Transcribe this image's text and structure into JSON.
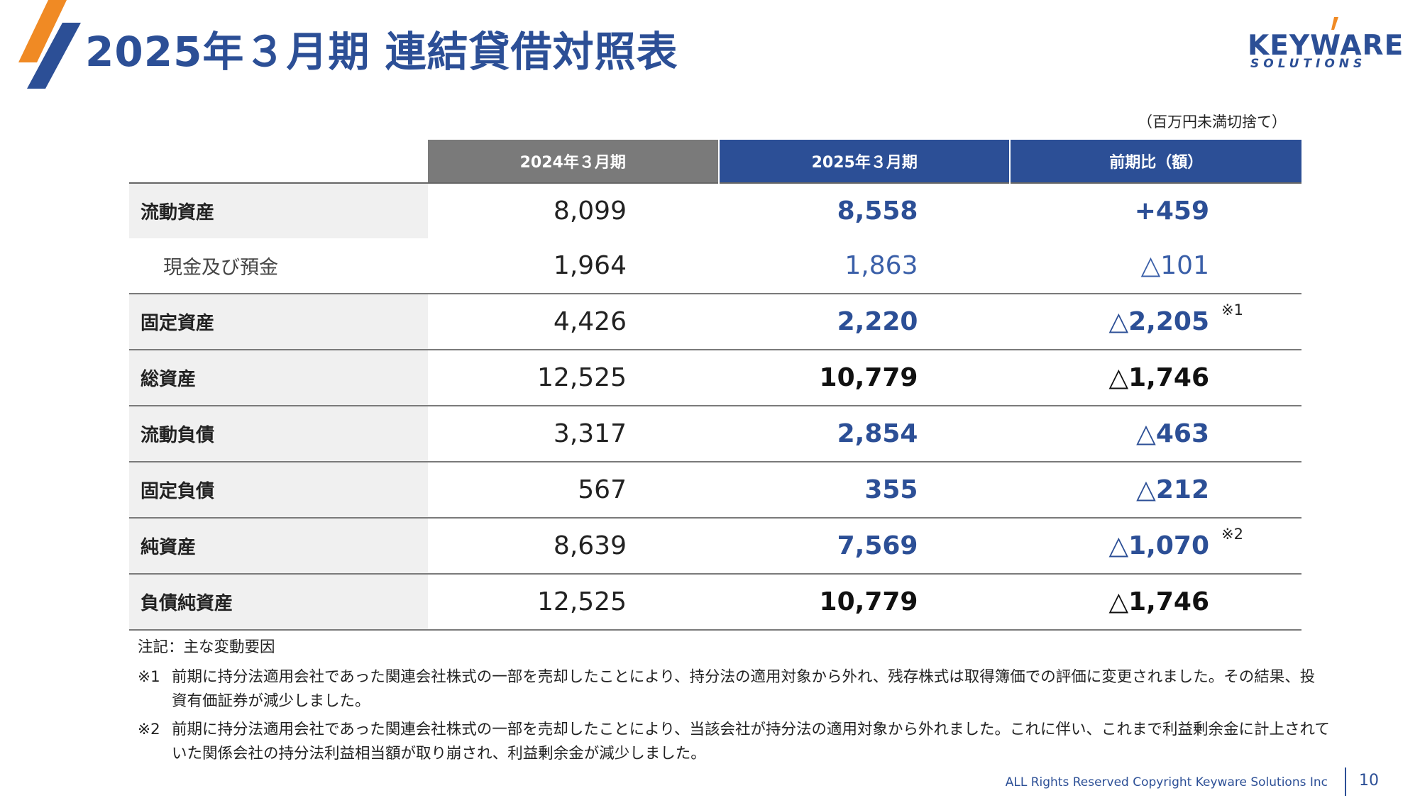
{
  "header": {
    "title": "2025年３月期 連結貸借対照表",
    "brand_colors": {
      "orange": "#f08a24",
      "blue": "#2c4f96"
    }
  },
  "logo": {
    "main": "KEYWARE",
    "sub": "SOLUTIONS"
  },
  "unit_note": "（百万円未満切捨て）",
  "table": {
    "columns": [
      "2024年３月期",
      "2025年３月期",
      "前期比（額）"
    ],
    "rows": [
      {
        "label": "流動資産",
        "prev": "8,099",
        "cur": "8,558",
        "diff": "+459",
        "note": ""
      },
      {
        "label": "現金及び預金",
        "prev": "1,964",
        "cur": "1,863",
        "diff": "△101",
        "note": ""
      },
      {
        "label": "固定資産",
        "prev": "4,426",
        "cur": "2,220",
        "diff": "△2,205",
        "note": "※1"
      },
      {
        "label": "総資産",
        "prev": "12,525",
        "cur": "10,779",
        "diff": "△1,746",
        "note": ""
      },
      {
        "label": "流動負債",
        "prev": "3,317",
        "cur": "2,854",
        "diff": "△463",
        "note": ""
      },
      {
        "label": "固定負債",
        "prev": "567",
        "cur": "355",
        "diff": "△212",
        "note": ""
      },
      {
        "label": "純資産",
        "prev": "8,639",
        "cur": "7,569",
        "diff": "△1,070",
        "note": "※2"
      },
      {
        "label": "負債純資産",
        "prev": "12,525",
        "cur": "10,779",
        "diff": "△1,746",
        "note": ""
      }
    ]
  },
  "notes": {
    "heading": "注記：主な変動要因",
    "items": [
      {
        "mark": "※1",
        "text": "前期に持分法適用会社であった関連会社株式の一部を売却したことにより、持分法の適用対象から外れ、残存株式は取得簿価での評価に変更されました。その結果、投資有価証券が減少しました。"
      },
      {
        "mark": "※2",
        "text": "前期に持分法適用会社であった関連会社株式の一部を売却したことにより、当該会社が持分法の適用対象から外れました。これに伴い、これまで利益剰余金に計上されていた関係会社の持分法利益相当額が取り崩され、利益剰余金が減少しました。"
      }
    ]
  },
  "footer": {
    "copyright": "ALL Rights Reserved Copyright Keyware Solutions Inc",
    "page_number": "10"
  }
}
